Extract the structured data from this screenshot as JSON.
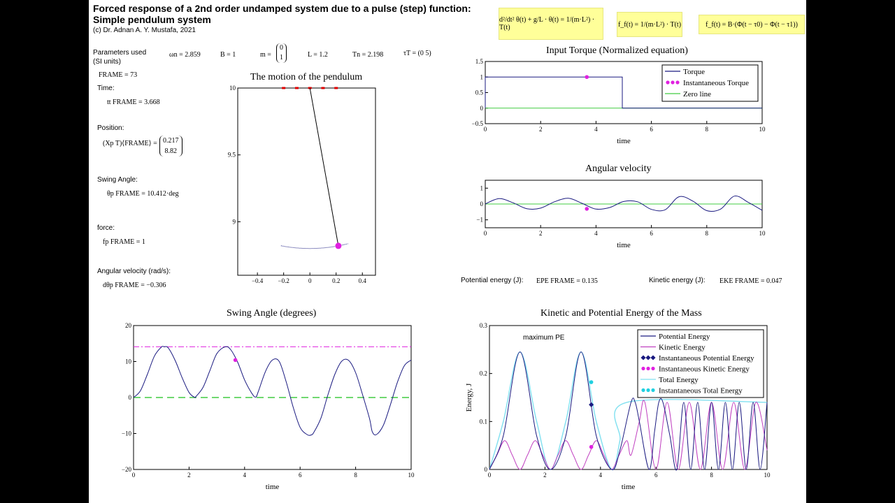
{
  "header": {
    "title_line1": "Forced response of a 2nd order undamped system due to a pulse (step) function:",
    "title_line2": "Simple pendulum system",
    "copyright": "(c) Dr. Adnan A. Y. Mustafa, 2021"
  },
  "equations": {
    "ode": "d²/dt² θ(t) + g/L · θ(t) = 1/(m·L²) · T(t)",
    "ff": "f_f(t) = 1/(m·L²) · T(t)",
    "ff2": "f_f(t) = B·(Φ(t − τ0) − Φ(t − τ1))"
  },
  "params": {
    "label_line1": "Parameters used",
    "label_line2": "(SI units)",
    "wn": "ωn = 2.859",
    "B": "B = 1",
    "m_prefix": "m =",
    "m_vec": [
      "0",
      "1"
    ],
    "L": "L = 1.2",
    "Tn": "Tn = 2.198",
    "tau": "τT = (0  5)"
  },
  "readouts": {
    "frame": "FRAME = 73",
    "time_label": "Time:",
    "time_value": "tt FRAME = 3.668",
    "position_label": "Position:",
    "position_lhs": "(Xp T)⟨FRAME⟩ =",
    "position_vec": [
      "0.217",
      "8.82"
    ],
    "swing_label": "Swing Angle:",
    "swing_value": "θp FRAME = 10.412·deg",
    "force_label": "force:",
    "force_value": "fp FRAME = 1",
    "angvel_label": "Angular velocity (rad/s):",
    "angvel_value": "dθp FRAME = −0.306",
    "pe_label": "Potential energy (J):",
    "pe_value": "EPE FRAME = 0.135",
    "ke_label": "Kinetic energy (J):",
    "ke_value": "EKE FRAME = 0.047"
  },
  "chart_data": [
    {
      "id": "pendulum",
      "type": "scatter",
      "title": "The motion of the pendulum",
      "xlim": [
        -0.55,
        0.5
      ],
      "ylim": [
        8.6,
        10
      ],
      "xticks": [
        -0.4,
        -0.2,
        0,
        0.2,
        0.4
      ],
      "yticks": [
        9,
        9.5,
        10
      ],
      "pivot": [
        0,
        10
      ],
      "bob": [
        0.217,
        8.82
      ],
      "mount_markers_x": [
        -0.2,
        -0.1,
        0,
        0.1,
        0.2
      ],
      "arc_xlim": [
        -0.22,
        0.29
      ],
      "colors": {
        "rod": "#000000",
        "bob": "#e020e0",
        "mount": "#e00000",
        "arc": "#1a1a80"
      }
    },
    {
      "id": "torque",
      "type": "line",
      "title": "Input Torque (Normalized equation)",
      "xlabel": "time",
      "xlim": [
        0,
        10
      ],
      "ylim": [
        -0.5,
        1.5
      ],
      "xticks": [
        0,
        2,
        4,
        6,
        8,
        10
      ],
      "yticks": [
        -0.5,
        0,
        0.5,
        1,
        1.5
      ],
      "series": [
        {
          "name": "Torque",
          "color": "#1a1a80",
          "x": [
            0,
            0,
            4.95,
            4.95,
            10
          ],
          "y": [
            0,
            1,
            1,
            0,
            0
          ]
        },
        {
          "name": "Instantaneous Torque",
          "color": "#e020e0",
          "x": [
            3.668
          ],
          "y": [
            1
          ]
        },
        {
          "name": "Zero line",
          "color": "#40cc40",
          "x": [
            0,
            10
          ],
          "y": [
            0,
            0
          ]
        }
      ]
    },
    {
      "id": "angvel",
      "type": "line",
      "title": "Angular velocity",
      "xlabel": "time",
      "xlim": [
        0,
        10
      ],
      "ylim": [
        -1.5,
        1.5
      ],
      "xticks": [
        0,
        2,
        4,
        6,
        8,
        10
      ],
      "yticks": [
        -1,
        0,
        1
      ],
      "series": [
        {
          "name": "Angular velocity",
          "color": "#1a1a80",
          "x": [
            0,
            0.5,
            1.0,
            1.5,
            2.0,
            2.5,
            3.0,
            3.5,
            4.0,
            4.5,
            5.0,
            5.5,
            6.0,
            6.5,
            7.0,
            7.5,
            8.0,
            8.5,
            9.0,
            9.5,
            10.0
          ],
          "y": [
            0,
            0.34,
            0.08,
            -0.3,
            -0.26,
            0.14,
            0.36,
            0.04,
            -0.32,
            -0.22,
            0.16,
            0.14,
            -0.34,
            -0.36,
            0.46,
            0.18,
            -0.42,
            -0.32,
            0.5,
            0.1,
            -0.4
          ]
        },
        {
          "name": "Instantaneous",
          "color": "#e020e0",
          "x": [
            3.668
          ],
          "y": [
            -0.306
          ]
        },
        {
          "name": "Zero line",
          "color": "#40cc40",
          "x": [
            0,
            10
          ],
          "y": [
            0,
            0
          ]
        }
      ]
    },
    {
      "id": "swing",
      "type": "line",
      "title": "Swing Angle (degrees)",
      "xlabel": "time",
      "xlim": [
        0,
        10
      ],
      "ylim": [
        -20,
        20
      ],
      "xticks": [
        0,
        2,
        4,
        6,
        8,
        10
      ],
      "yticks": [
        -20,
        -10,
        0,
        10,
        20
      ],
      "series": [
        {
          "name": "Swing angle",
          "color": "#1a1a80",
          "x": [
            0,
            0.25,
            0.5,
            0.75,
            1.0,
            1.1,
            1.25,
            1.5,
            1.75,
            2.0,
            2.2,
            2.25,
            2.5,
            2.75,
            3.0,
            3.3,
            3.5,
            3.75,
            4.0,
            4.25,
            4.4,
            4.5,
            4.75,
            5.0,
            5.25,
            5.5,
            5.75,
            6.0,
            6.25,
            6.4,
            6.5,
            6.75,
            7.0,
            7.25,
            7.5,
            7.75,
            8.0,
            8.25,
            8.5,
            8.6,
            8.75,
            9.0,
            9.25,
            9.5,
            9.75,
            10.0
          ],
          "y": [
            0,
            1.9,
            6.5,
            11.5,
            14.0,
            14.1,
            13.8,
            10.3,
            5.5,
            1.4,
            0.05,
            0.3,
            2.8,
            7.5,
            12.2,
            14.1,
            13.3,
            9.8,
            4.9,
            1.3,
            0.1,
            1.8,
            7.2,
            10.4,
            10.0,
            4.3,
            -2.7,
            -8.3,
            -10.3,
            -10.4,
            -9.6,
            -5.7,
            0.7,
            6.4,
            10.1,
            10.3,
            6.9,
            0.8,
            -5.8,
            -9.5,
            -10.3,
            -7.7,
            -2.1,
            4.1,
            8.8,
            10.4
          ]
        },
        {
          "name": "Instantaneous",
          "color": "#e020e0",
          "x": [
            3.668
          ],
          "y": [
            10.412
          ]
        },
        {
          "name": "Max line",
          "color": "#e020e0",
          "x": [
            0,
            10
          ],
          "y": [
            14.1,
            14.1
          ]
        },
        {
          "name": "Zero line",
          "color": "#40cc40",
          "x": [
            0,
            10
          ],
          "y": [
            0,
            0
          ]
        }
      ]
    },
    {
      "id": "energy",
      "type": "line",
      "title": "Kinetic and Potential Energy of the Mass",
      "xlabel": "time",
      "ylabel": "Energy, J",
      "annotation": "maximum PE",
      "xlim": [
        0,
        10
      ],
      "ylim": [
        0,
        0.3
      ],
      "xticks": [
        0,
        2,
        4,
        6,
        8,
        10
      ],
      "yticks": [
        0,
        0.1,
        0.2,
        0.3
      ],
      "series": [
        {
          "name": "Potential Energy",
          "color": "#1a1a80",
          "x": [
            0,
            0.5,
            1.1,
            1.7,
            2.2,
            2.75,
            3.3,
            3.85,
            4.4,
            4.7,
            5.1,
            5.25,
            5.4,
            5.75,
            5.95,
            6.1,
            6.25,
            6.5,
            6.75,
            7.0,
            7.25,
            7.5,
            7.75,
            8.0,
            8.25,
            8.5,
            8.75,
            9.0,
            9.25,
            9.5,
            9.75,
            10.0
          ],
          "y": [
            0,
            0.07,
            0.245,
            0.07,
            0,
            0.07,
            0.245,
            0.07,
            0,
            0.04,
            0.14,
            0.14,
            0.1,
            0,
            0.08,
            0.14,
            0.14,
            0.07,
            0.0,
            0.14,
            0.0,
            0.14,
            0.0,
            0.14,
            0.0,
            0.14,
            0.0,
            0.14,
            0.0,
            0.14,
            0.0,
            0.14
          ]
        },
        {
          "name": "Kinetic Energy",
          "color": "#c040c0",
          "x": [
            0,
            0.27,
            0.55,
            0.82,
            1.1,
            1.37,
            1.65,
            1.92,
            2.2,
            2.47,
            2.75,
            3.02,
            3.3,
            3.57,
            3.85,
            4.12,
            4.4,
            4.67,
            4.95,
            5.1,
            5.4,
            5.6,
            6.0,
            6.4,
            6.8,
            7.2,
            7.6,
            8.0,
            8.4,
            8.8,
            9.2,
            9.6,
            10.0
          ],
          "y": [
            0,
            0.03,
            0.06,
            0.03,
            0,
            0.03,
            0.06,
            0.03,
            0,
            0.03,
            0.06,
            0.03,
            0,
            0.03,
            0.06,
            0.03,
            0,
            0.03,
            0.06,
            0.03,
            0.1,
            0.14,
            0.0,
            0.14,
            0.0,
            0.14,
            0.0,
            0.14,
            0.0,
            0.14,
            0.0,
            0.14,
            0.04
          ]
        },
        {
          "name": "Instantaneous Potential Energy",
          "color": "#1a1a80",
          "x": [
            3.668
          ],
          "y": [
            0.135
          ]
        },
        {
          "name": "Instantaneous Kinetic Energy",
          "color": "#e020e0",
          "x": [
            3.668
          ],
          "y": [
            0.047
          ]
        },
        {
          "name": "Total Energy",
          "color": "#80e0f0",
          "x": [
            0,
            0.5,
            1.1,
            1.7,
            2.2,
            2.75,
            3.3,
            3.85,
            4.4,
            4.7,
            4.95,
            10.0
          ],
          "y": [
            0,
            0.1,
            0.245,
            0.1,
            0,
            0.1,
            0.245,
            0.1,
            0,
            0.06,
            0.14,
            0.14
          ]
        },
        {
          "name": "Instantaneous Total Energy",
          "color": "#20d0e0",
          "x": [
            3.668
          ],
          "y": [
            0.182
          ]
        }
      ]
    }
  ]
}
